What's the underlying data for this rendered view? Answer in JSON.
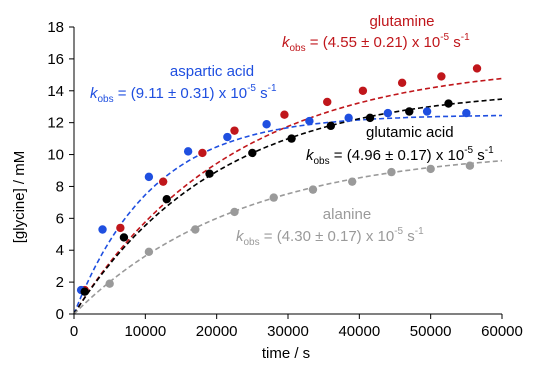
{
  "chart_data": {
    "type": "scatter",
    "xlabel": "time / s",
    "ylabel": "[glycine] / mM",
    "xlim": [
      0,
      60000
    ],
    "ylim": [
      0,
      18
    ],
    "x_ticks": [
      "0",
      "10000",
      "20000",
      "30000",
      "40000",
      "50000",
      "60000"
    ],
    "y_ticks": [
      "0",
      "2",
      "4",
      "6",
      "8",
      "10",
      "12",
      "14",
      "16",
      "18"
    ],
    "grid": false,
    "legend": "none (inline annotations)",
    "series": [
      {
        "name": "glutamine",
        "color": "#c0161b",
        "fit_line": "dashed",
        "k_obs_label": "k",
        "k_obs_sub": "obs",
        "k_obs_text": " = (4.55 ± 0.21) x 10",
        "k_obs_exp": "-5",
        "k_obs_unit": " s",
        "k_obs_unit_exp": "-1",
        "fit": {
          "a": 15.8,
          "k": 4.55e-05
        },
        "points": [
          [
            1500,
            1.5
          ],
          [
            6500,
            5.4
          ],
          [
            12500,
            8.3
          ],
          [
            18000,
            10.1
          ],
          [
            22500,
            11.5
          ],
          [
            29500,
            12.5
          ],
          [
            35500,
            13.3
          ],
          [
            40500,
            14.0
          ],
          [
            46000,
            14.5
          ],
          [
            51500,
            14.9
          ],
          [
            56500,
            15.4
          ]
        ]
      },
      {
        "name": "aspartic acid",
        "color": "#1f4fe0",
        "fit_line": "dashed",
        "k_obs_label": "k",
        "k_obs_sub": "obs",
        "k_obs_text": " = (9.11 ± 0.31) x 10",
        "k_obs_exp": "-5",
        "k_obs_unit": " s",
        "k_obs_unit_exp": "-1",
        "fit": {
          "a": 12.5,
          "k": 9.11e-05
        },
        "points": [
          [
            1000,
            1.5
          ],
          [
            4000,
            5.3
          ],
          [
            10500,
            8.6
          ],
          [
            16000,
            10.2
          ],
          [
            21500,
            11.1
          ],
          [
            27000,
            11.9
          ],
          [
            33000,
            12.1
          ],
          [
            38500,
            12.3
          ],
          [
            44000,
            12.6
          ],
          [
            49500,
            12.7
          ],
          [
            55000,
            12.6
          ]
        ]
      },
      {
        "name": "glutamic acid",
        "color": "#000000",
        "fit_line": "dashed",
        "k_obs_label": "k",
        "k_obs_sub": "obs",
        "k_obs_text": " = (4.96 ± 0.17) x 10",
        "k_obs_exp": "-5",
        "k_obs_unit": " s",
        "k_obs_unit_exp": "-1",
        "fit": {
          "a": 14.2,
          "k": 4.96e-05
        },
        "points": [
          [
            1500,
            1.4
          ],
          [
            7000,
            4.8
          ],
          [
            13000,
            7.2
          ],
          [
            19000,
            8.8
          ],
          [
            25000,
            10.1
          ],
          [
            30500,
            11.0
          ],
          [
            36000,
            11.8
          ],
          [
            41500,
            12.3
          ],
          [
            47000,
            12.7
          ],
          [
            52500,
            13.2
          ]
        ]
      },
      {
        "name": "alanine",
        "color": "#9a9a9a",
        "fit_line": "dashed",
        "k_obs_label": "k",
        "k_obs_sub": "obs",
        "k_obs_text": " = (4.30 ± 0.17) x 10",
        "k_obs_exp": "-5",
        "k_obs_unit": " s",
        "k_obs_unit_exp": "-1",
        "fit": {
          "a": 10.4,
          "k": 4.3e-05
        },
        "points": [
          [
            5000,
            1.9
          ],
          [
            10500,
            3.9
          ],
          [
            17000,
            5.3
          ],
          [
            22500,
            6.4
          ],
          [
            28000,
            7.3
          ],
          [
            33500,
            7.8
          ],
          [
            39000,
            8.3
          ],
          [
            44500,
            8.9
          ],
          [
            50000,
            9.1
          ],
          [
            55500,
            9.3
          ]
        ]
      }
    ]
  }
}
